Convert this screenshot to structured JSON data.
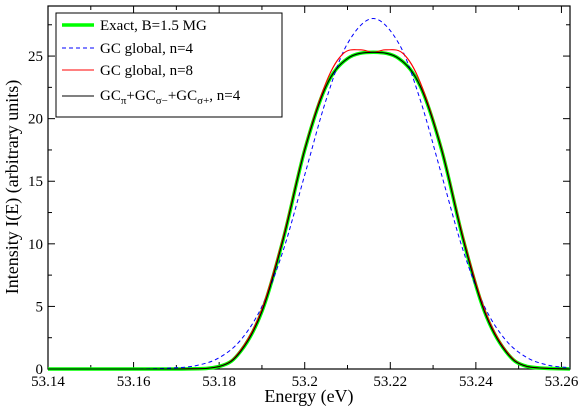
{
  "chart_data": {
    "type": "line",
    "xlabel": "Energy (eV)",
    "ylabel": "Intensity I(E) (arbitrary units)",
    "xlim": [
      53.14,
      53.262
    ],
    "ylim": [
      0,
      29
    ],
    "x_ticks": [
      "53.14",
      "53.16",
      "53.18",
      "53.2",
      "53.22",
      "53.24",
      "53.26"
    ],
    "y_ticks": [
      "0",
      "5",
      "10",
      "15",
      "20",
      "25"
    ],
    "legend_position": "top-left",
    "series": [
      {
        "name": "Exact, B=1.5 MG",
        "color": "#00ff00",
        "style": "solid-thick",
        "x": [
          53.14,
          53.17,
          53.18,
          53.185,
          53.19,
          53.195,
          53.2,
          53.205,
          53.21,
          53.216,
          53.222,
          53.227,
          53.232,
          53.237,
          53.242,
          53.247,
          53.252,
          53.262
        ],
        "y": [
          0,
          0,
          0.2,
          1.4,
          4.6,
          10.4,
          17.5,
          22.6,
          24.8,
          25.3,
          24.8,
          22.6,
          17.5,
          10.4,
          4.6,
          1.4,
          0.2,
          0
        ]
      },
      {
        "name": "GC global, n=4",
        "color": "#0000ff",
        "style": "dashed",
        "x": [
          53.14,
          53.16,
          53.17,
          53.175,
          53.18,
          53.185,
          53.19,
          53.195,
          53.2,
          53.205,
          53.21,
          53.216,
          53.222,
          53.227,
          53.232,
          53.237,
          53.242,
          53.247,
          53.252,
          53.257,
          53.262
        ],
        "y": [
          0,
          0,
          0.1,
          0.3,
          0.9,
          2.3,
          5.0,
          9.5,
          15.5,
          21.5,
          26.0,
          28.0,
          26.0,
          21.5,
          15.5,
          9.5,
          5.0,
          2.3,
          0.9,
          0.3,
          0.1
        ]
      },
      {
        "name": "GC global, n=8",
        "color": "#ff0000",
        "style": "solid",
        "x": [
          53.14,
          53.17,
          53.18,
          53.185,
          53.19,
          53.195,
          53.2,
          53.205,
          53.209,
          53.213,
          53.216,
          53.219,
          53.223,
          53.227,
          53.232,
          53.237,
          53.242,
          53.247,
          53.252,
          53.262
        ],
        "y": [
          0,
          0,
          0.2,
          1.5,
          4.8,
          10.6,
          17.6,
          22.9,
          25.2,
          25.5,
          25.3,
          25.5,
          25.2,
          22.9,
          17.6,
          10.6,
          4.8,
          1.5,
          0.2,
          0
        ]
      },
      {
        "name": "GCπ+GCσ−+GCσ+, n=4",
        "color": "#000000",
        "style": "solid",
        "x": [
          53.14,
          53.17,
          53.18,
          53.185,
          53.19,
          53.195,
          53.2,
          53.205,
          53.21,
          53.216,
          53.222,
          53.227,
          53.232,
          53.237,
          53.242,
          53.247,
          53.252,
          53.262
        ],
        "y": [
          0,
          0,
          0.2,
          1.4,
          4.6,
          10.4,
          17.5,
          22.6,
          24.8,
          25.3,
          24.8,
          22.6,
          17.5,
          10.4,
          4.6,
          1.4,
          0.2,
          0
        ]
      }
    ]
  }
}
